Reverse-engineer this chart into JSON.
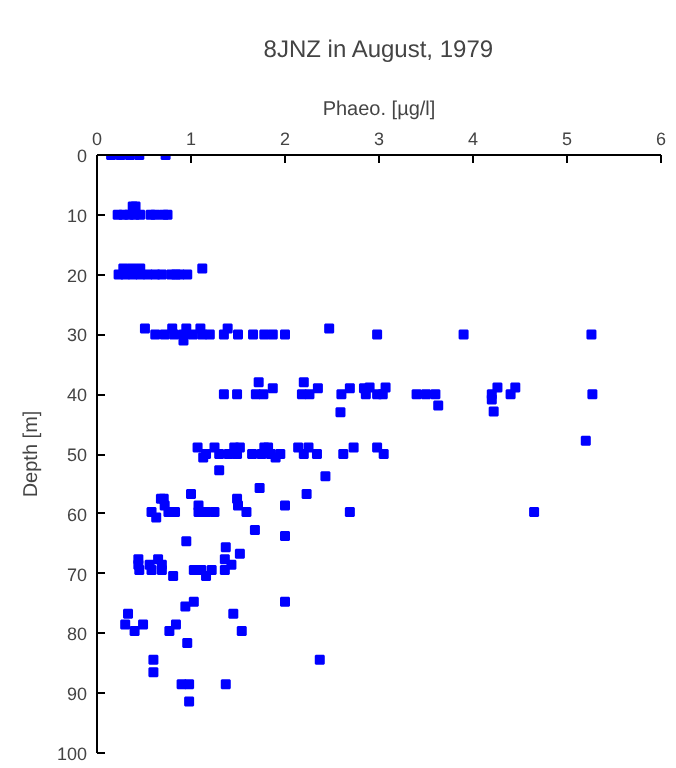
{
  "chart_data": {
    "type": "scatter",
    "title": "8JNZ in August, 1979",
    "xlabel": "Phaeo. [µg/l]",
    "ylabel": "Depth [m]",
    "xlim": [
      0,
      6
    ],
    "xticks": [
      0,
      1,
      2,
      3,
      4,
      5,
      6
    ],
    "ylim": [
      100,
      0
    ],
    "yticks": [
      0,
      10,
      20,
      30,
      40,
      50,
      60,
      70,
      80,
      90,
      100
    ],
    "grid": false,
    "marker": "square",
    "series": [
      {
        "color": "#0000ff",
        "x": [
          0.15,
          0.25,
          0.35,
          0.45,
          0.73,
          0.22,
          0.28,
          0.34,
          0.4,
          0.46,
          0.57,
          0.62,
          0.71,
          0.75,
          0.38,
          0.41,
          0.23,
          0.3,
          0.38,
          0.46,
          0.54,
          0.62,
          0.69,
          0.79,
          0.84,
          0.88,
          0.96,
          0.28,
          0.37,
          0.46,
          1.12,
          0.62,
          0.72,
          0.82,
          0.92,
          1.02,
          1.12,
          1.2,
          1.35,
          1.5,
          1.66,
          1.78,
          1.87,
          2.0,
          2.98,
          3.9,
          5.26,
          0.51,
          0.8,
          0.95,
          1.1,
          1.39,
          2.47,
          0.92,
          1.35,
          1.49,
          1.69,
          1.77,
          2.18,
          2.26,
          2.6,
          2.86,
          2.98,
          3.04,
          3.4,
          3.5,
          3.6,
          4.2,
          4.4,
          5.27,
          1.72,
          2.2,
          1.87,
          2.35,
          2.69,
          2.84,
          2.9,
          3.07,
          4.26,
          4.45,
          2.59,
          3.63,
          4.2,
          4.22,
          5.2,
          1.07,
          1.25,
          1.46,
          1.52,
          1.78,
          1.82,
          2.14,
          2.25,
          2.73,
          2.98,
          1.16,
          1.3,
          1.4,
          1.49,
          1.65,
          1.75,
          1.85,
          1.95,
          2.2,
          2.34,
          2.62,
          3.05,
          1.13,
          1.9,
          1.3,
          2.43,
          1.73,
          1.0,
          2.23,
          0.68,
          0.71,
          1.49,
          0.72,
          1.08,
          1.5,
          2.0,
          0.58,
          0.76,
          0.83,
          1.08,
          1.16,
          1.25,
          1.59,
          2.69,
          4.65,
          0.63,
          1.68,
          2.0,
          0.95,
          1.37,
          1.52,
          0.44,
          0.65,
          1.36,
          0.44,
          0.56,
          0.69,
          1.43,
          0.45,
          0.58,
          0.69,
          1.03,
          1.11,
          1.22,
          1.36,
          0.81,
          1.16,
          1.03,
          2.0,
          0.94,
          0.33,
          1.45,
          0.3,
          0.49,
          0.84,
          0.4,
          0.77,
          1.54,
          0.96,
          0.6,
          2.37,
          0.6,
          0.9,
          0.98,
          1.37,
          0.98
        ],
        "values": [
          0,
          0,
          0,
          0,
          0,
          10,
          10,
          10,
          10,
          10,
          10,
          10,
          10,
          10,
          8.6,
          8.6,
          20,
          20,
          20,
          20,
          20,
          20,
          20,
          20,
          20,
          20,
          20,
          19,
          19,
          19,
          19,
          30,
          30,
          30,
          30,
          30,
          30,
          30,
          30,
          30,
          30,
          30,
          30,
          30,
          30,
          30,
          30,
          29,
          29,
          29,
          29,
          29,
          29,
          31,
          40,
          40,
          40,
          40,
          40,
          40,
          40,
          40,
          40,
          40,
          40,
          40,
          40,
          40,
          40,
          40,
          38,
          38,
          39,
          39,
          39,
          39,
          38.9,
          38.9,
          38.9,
          38.9,
          43,
          41.9,
          40.9,
          42.9,
          47.8,
          48.9,
          48.9,
          48.9,
          48.9,
          48.9,
          48.9,
          48.9,
          48.9,
          48.9,
          48.9,
          50,
          50,
          50,
          50,
          50,
          50,
          50,
          50,
          50,
          50,
          50,
          50,
          50.6,
          50.6,
          52.7,
          53.7,
          55.7,
          56.7,
          56.7,
          57.5,
          57.5,
          57.5,
          58.6,
          58.6,
          58.6,
          58.6,
          59.7,
          59.7,
          59.7,
          59.7,
          59.7,
          59.7,
          59.7,
          59.7,
          59.7,
          60.6,
          62.7,
          63.7,
          64.6,
          65.6,
          66.7,
          67.6,
          67.6,
          67.6,
          68.5,
          68.5,
          68.5,
          68.5,
          69.4,
          69.4,
          69.4,
          69.4,
          69.4,
          69.4,
          69.4,
          70.4,
          70.4,
          74.7,
          74.7,
          75.5,
          76.7,
          76.7,
          78.5,
          78.5,
          78.5,
          79.6,
          79.6,
          79.6,
          81.6,
          84.4,
          84.4,
          86.5,
          88.5,
          88.5,
          88.5,
          91.4
        ]
      }
    ]
  }
}
